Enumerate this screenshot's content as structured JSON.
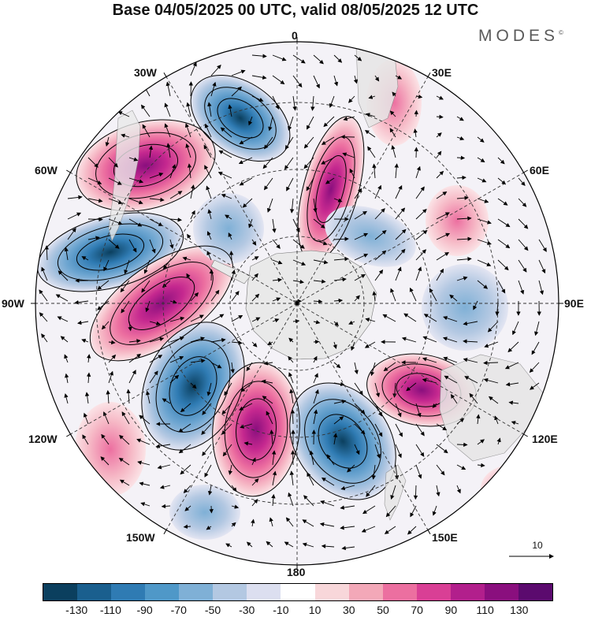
{
  "title": "Base 04/05/2025 00 UTC, valid 08/05/2025 12 UTC",
  "brand": "MODES",
  "brand_mark": "©",
  "longitude_labels": {
    "lon_0": "0",
    "lon_30e": "30E",
    "lon_60e": "60E",
    "lon_90e": "90E",
    "lon_120e": "120E",
    "lon_150e": "150E",
    "lon_180": "180",
    "lon_150w": "150W",
    "lon_120w": "120W",
    "lon_90w": "90W",
    "lon_60w": "60W",
    "lon_30w": "30W"
  },
  "vector_reference": "10",
  "colorbar": {
    "ticks": [
      "-130",
      "-110",
      "-90",
      "-70",
      "-50",
      "-30",
      "-10",
      "10",
      "30",
      "50",
      "70",
      "90",
      "110",
      "130"
    ],
    "colors": [
      "#0b3f5e",
      "#1a5f8e",
      "#2f7bb3",
      "#4f98c8",
      "#7fb0d6",
      "#b3c8e2",
      "#dcdff0",
      "#ffffff",
      "#f8d7da",
      "#f3a8b8",
      "#ec6fa0",
      "#d93f95",
      "#b21f8c",
      "#8a0f7e",
      "#5b0a6e"
    ]
  },
  "anomaly_centers": [
    {
      "region": "near 60W",
      "sign": "positive"
    },
    {
      "region": "near 35W",
      "sign": "negative"
    },
    {
      "region": "near 80W",
      "sign": "negative"
    },
    {
      "region": "near 100W",
      "sign": "positive"
    },
    {
      "region": "near 135W",
      "sign": "negative"
    },
    {
      "region": "near 165W",
      "sign": "positive"
    },
    {
      "region": "near 160E",
      "sign": "negative"
    },
    {
      "region": "near 120E",
      "sign": "positive"
    },
    {
      "region": "near 5E",
      "sign": "positive"
    },
    {
      "region": "near 90E",
      "sign": "negative"
    }
  ]
}
